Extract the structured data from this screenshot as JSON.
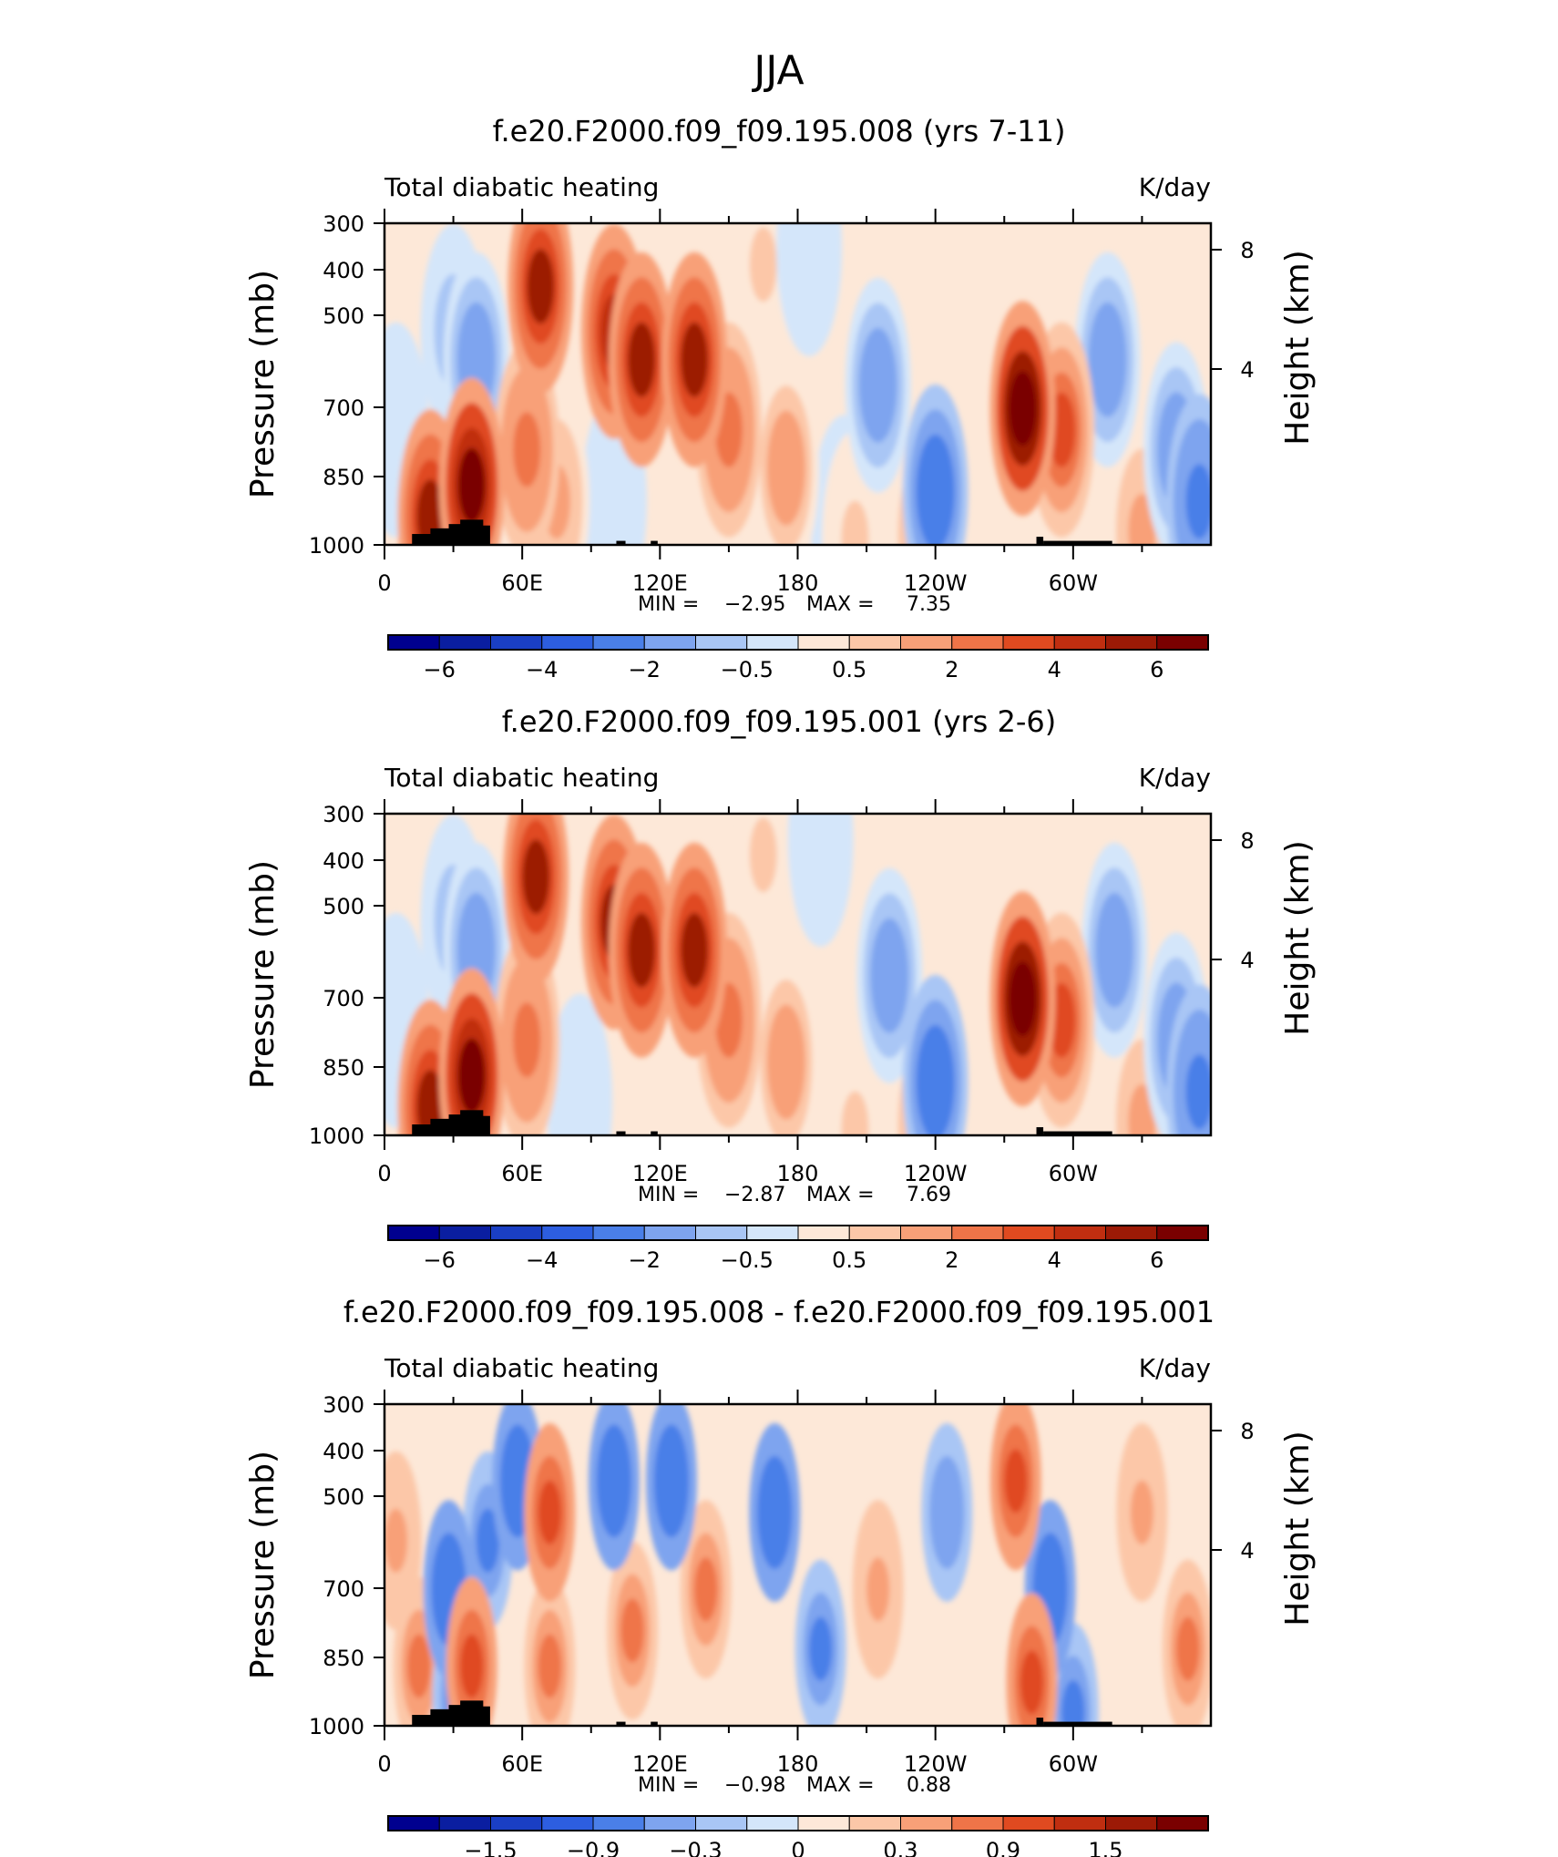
{
  "page_title": "JJA",
  "chart_data": [
    {
      "type": "heatmap",
      "title": "f.e20.F2000.f09_f09.195.008 (yrs 7-11)",
      "subtitle_left": "Total diabatic heating",
      "subtitle_right": "K/day",
      "ylabel": "Pressure (mb)",
      "ylabel_right": "Height (km)",
      "x_ticks": [
        "0",
        "60E",
        "120E",
        "180",
        "120W",
        "60W"
      ],
      "y_ticks": [
        "300",
        "400",
        "500",
        "700",
        "850",
        "1000"
      ],
      "y_right_ticks": [
        "8",
        "4"
      ],
      "xlim": [
        0,
        360
      ],
      "ylim": [
        1000,
        300
      ],
      "stats": {
        "min_label": "MIN =",
        "min": "−2.95",
        "max_label": "MAX =",
        "max": "7.35"
      },
      "colorbar_labels": [
        "−6",
        "−4",
        "−2",
        "−0.5",
        "0.5",
        "2",
        "4",
        "6"
      ],
      "features": [
        {
          "lon": 5,
          "p": 650,
          "value": -0.5
        },
        {
          "lon": 20,
          "p": 900,
          "value": 5
        },
        {
          "lon": 30,
          "p": 450,
          "value": -1
        },
        {
          "lon": 38,
          "p": 800,
          "value": 6.5
        },
        {
          "lon": 40,
          "p": 500,
          "value": -2
        },
        {
          "lon": 68,
          "p": 380,
          "value": 5
        },
        {
          "lon": 62,
          "p": 700,
          "value": 2
        },
        {
          "lon": 75,
          "p": 850,
          "value": 1
        },
        {
          "lon": 100,
          "p": 450,
          "value": 4.5
        },
        {
          "lon": 112,
          "p": 500,
          "value": 5
        },
        {
          "lon": 100,
          "p": 850,
          "value": -0.5
        },
        {
          "lon": 135,
          "p": 500,
          "value": 5
        },
        {
          "lon": 150,
          "p": 650,
          "value": 2
        },
        {
          "lon": 175,
          "p": 750,
          "value": 1.5
        },
        {
          "lon": 165,
          "p": 350,
          "value": 0.5
        },
        {
          "lon": 185,
          "p": 330,
          "value": -0.5
        },
        {
          "lon": 215,
          "p": 550,
          "value": -2
        },
        {
          "lon": 240,
          "p": 820,
          "value": -3
        },
        {
          "lon": 200,
          "p": 920,
          "value": -0.3
        },
        {
          "lon": 205,
          "p": 975,
          "value": 0.5
        },
        {
          "lon": 235,
          "p": 960,
          "value": 1
        },
        {
          "lon": 278,
          "p": 600,
          "value": 7
        },
        {
          "lon": 295,
          "p": 650,
          "value": 3
        },
        {
          "lon": 315,
          "p": 500,
          "value": -1.5
        },
        {
          "lon": 345,
          "p": 700,
          "value": -1.5
        },
        {
          "lon": 355,
          "p": 850,
          "value": -2.5
        },
        {
          "lon": 330,
          "p": 950,
          "value": 1
        }
      ]
    },
    {
      "type": "heatmap",
      "title": "f.e20.F2000.f09_f09.195.001 (yrs 2-6)",
      "subtitle_left": "Total diabatic heating",
      "subtitle_right": "K/day",
      "ylabel": "Pressure (mb)",
      "ylabel_right": "Height (km)",
      "x_ticks": [
        "0",
        "60E",
        "120E",
        "180",
        "120W",
        "60W"
      ],
      "y_ticks": [
        "300",
        "400",
        "500",
        "700",
        "850",
        "1000"
      ],
      "y_right_ticks": [
        "8",
        "4"
      ],
      "xlim": [
        0,
        360
      ],
      "ylim": [
        1000,
        300
      ],
      "stats": {
        "min_label": "MIN =",
        "min": "−2.87",
        "max_label": "MAX =",
        "max": "7.69"
      },
      "colorbar_labels": [
        "−6",
        "−4",
        "−2",
        "−0.5",
        "0.5",
        "2",
        "4",
        "6"
      ],
      "features": [
        {
          "lon": 5,
          "p": 650,
          "value": -0.5
        },
        {
          "lon": 20,
          "p": 900,
          "value": 5
        },
        {
          "lon": 30,
          "p": 450,
          "value": -1
        },
        {
          "lon": 38,
          "p": 800,
          "value": 6.5
        },
        {
          "lon": 40,
          "p": 500,
          "value": -2
        },
        {
          "lon": 66,
          "p": 380,
          "value": 5
        },
        {
          "lon": 62,
          "p": 700,
          "value": 2
        },
        {
          "lon": 85,
          "p": 880,
          "value": -0.5
        },
        {
          "lon": 100,
          "p": 450,
          "value": 5
        },
        {
          "lon": 112,
          "p": 500,
          "value": 5
        },
        {
          "lon": 135,
          "p": 500,
          "value": 5
        },
        {
          "lon": 150,
          "p": 650,
          "value": 2
        },
        {
          "lon": 175,
          "p": 760,
          "value": 1.5
        },
        {
          "lon": 165,
          "p": 350,
          "value": 0.5
        },
        {
          "lon": 190,
          "p": 330,
          "value": -0.5
        },
        {
          "lon": 220,
          "p": 550,
          "value": -2
        },
        {
          "lon": 240,
          "p": 820,
          "value": -3
        },
        {
          "lon": 205,
          "p": 975,
          "value": 0.5
        },
        {
          "lon": 235,
          "p": 960,
          "value": 1
        },
        {
          "lon": 278,
          "p": 600,
          "value": 7.5
        },
        {
          "lon": 295,
          "p": 650,
          "value": 3
        },
        {
          "lon": 318,
          "p": 500,
          "value": -1.5
        },
        {
          "lon": 345,
          "p": 700,
          "value": -1.5
        },
        {
          "lon": 355,
          "p": 850,
          "value": -2.5
        },
        {
          "lon": 330,
          "p": 950,
          "value": 1
        }
      ]
    },
    {
      "type": "heatmap",
      "title": "f.e20.F2000.f09_f09.195.008 - f.e20.F2000.f09_f09.195.001",
      "subtitle_left": "Total diabatic heating",
      "subtitle_right": "K/day",
      "ylabel": "Pressure (mb)",
      "ylabel_right": "Height (km)",
      "x_ticks": [
        "0",
        "60E",
        "120E",
        "180",
        "120W",
        "60W"
      ],
      "y_ticks": [
        "300",
        "400",
        "500",
        "700",
        "850",
        "1000"
      ],
      "y_right_ticks": [
        "8",
        "4"
      ],
      "xlim": [
        0,
        360
      ],
      "ylim": [
        1000,
        300
      ],
      "stats": {
        "min_label": "MIN =",
        "min": "−0.98",
        "max_label": "MAX =",
        "max": "0.88"
      },
      "colorbar_labels": [
        "−1.5",
        "−0.9",
        "−0.3",
        "0",
        "0.3",
        "0.9",
        "1.5"
      ],
      "features": [
        {
          "lon": 5,
          "p": 500,
          "value": 0.2
        },
        {
          "lon": 15,
          "p": 800,
          "value": 0.3
        },
        {
          "lon": 28,
          "p": 600,
          "value": -0.5
        },
        {
          "lon": 32,
          "p": 900,
          "value": -0.4
        },
        {
          "lon": 38,
          "p": 800,
          "value": 0.7
        },
        {
          "lon": 45,
          "p": 500,
          "value": -0.4
        },
        {
          "lon": 58,
          "p": 400,
          "value": -0.5
        },
        {
          "lon": 72,
          "p": 450,
          "value": 0.7
        },
        {
          "lon": 72,
          "p": 800,
          "value": 0.4
        },
        {
          "lon": 100,
          "p": 400,
          "value": -0.6
        },
        {
          "lon": 108,
          "p": 700,
          "value": 0.4
        },
        {
          "lon": 125,
          "p": 400,
          "value": -0.5
        },
        {
          "lon": 140,
          "p": 600,
          "value": 0.4
        },
        {
          "lon": 170,
          "p": 450,
          "value": -0.6
        },
        {
          "lon": 190,
          "p": 750,
          "value": -0.4
        },
        {
          "lon": 215,
          "p": 600,
          "value": 0.2
        },
        {
          "lon": 245,
          "p": 450,
          "value": -0.3
        },
        {
          "lon": 275,
          "p": 400,
          "value": 0.8
        },
        {
          "lon": 290,
          "p": 600,
          "value": -0.5
        },
        {
          "lon": 282,
          "p": 850,
          "value": 0.7
        },
        {
          "lon": 300,
          "p": 950,
          "value": -0.4
        },
        {
          "lon": 330,
          "p": 450,
          "value": 0.2
        },
        {
          "lon": 350,
          "p": 750,
          "value": 0.4
        }
      ]
    }
  ],
  "colors": {
    "palette": [
      "#00008f",
      "#0a1ea0",
      "#1a3fc4",
      "#2d5ee0",
      "#4a7fe8",
      "#7ea4ef",
      "#a9c6f5",
      "#d4e6fa",
      "#fde8d8",
      "#fcc7a8",
      "#f8a078",
      "#ef7448",
      "#e04a20",
      "#c02e10",
      "#9c1a06",
      "#7a0000"
    ]
  }
}
